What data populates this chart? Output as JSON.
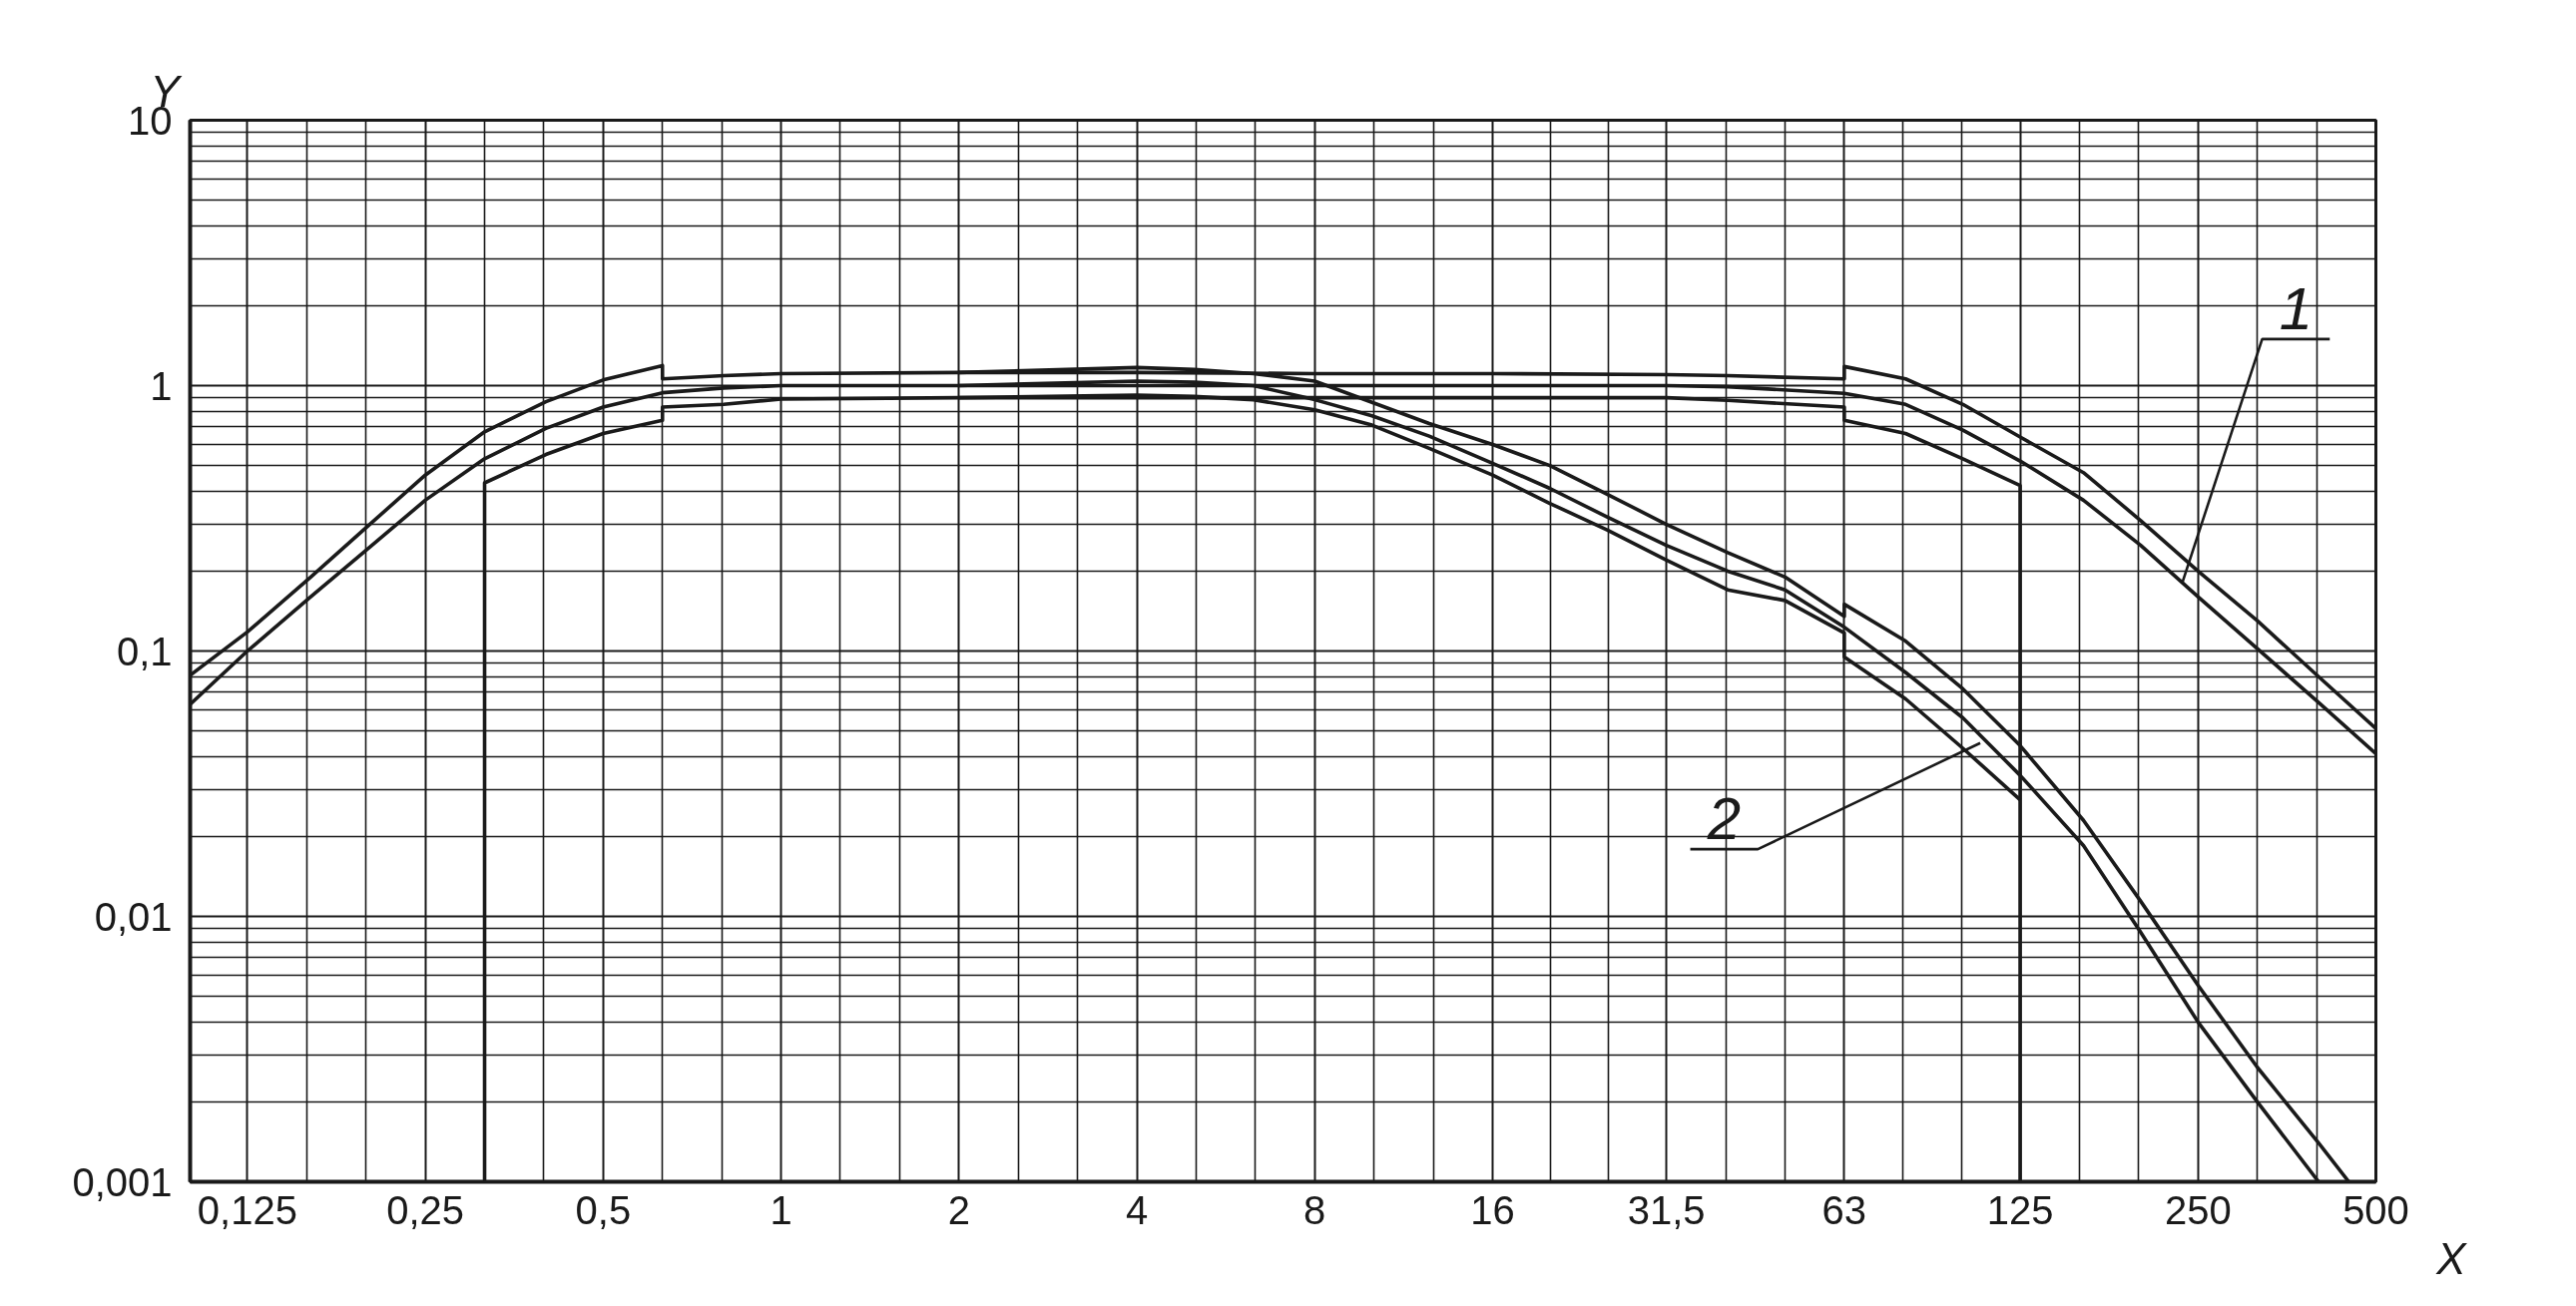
{
  "chart_data": {
    "type": "line",
    "xlabel": "X",
    "ylabel": "Y",
    "log": "xy",
    "grid": true,
    "xlim": [
      0.1,
      500
    ],
    "ylim": [
      0.001,
      10
    ],
    "xticks": [
      {
        "value": 0.125,
        "label": "0,125"
      },
      {
        "value": 0.25,
        "label": "0,25"
      },
      {
        "value": 0.5,
        "label": "0,5"
      },
      1,
      2,
      4,
      8,
      16,
      {
        "value": 31.5,
        "label": "31,5"
      },
      63,
      125,
      250,
      500
    ],
    "yticks": [
      {
        "value": 0.001,
        "label": "0,001"
      },
      {
        "value": 0.01,
        "label": "0,01"
      },
      {
        "value": 0.1,
        "label": "0,1"
      },
      1,
      10
    ],
    "series": [
      {
        "color": "#1a1a1a",
        "x": [
          0.1,
          0.125,
          0.16,
          0.2,
          0.25,
          0.315,
          0.4,
          0.5,
          0.63,
          0.8,
          1,
          2,
          4,
          8,
          16,
          31.5,
          40,
          63,
          80,
          100,
          125,
          160,
          200,
          250,
          315,
          400,
          500
        ],
        "values": [
          0.063,
          0.1,
          0.16,
          0.243,
          0.37,
          0.53,
          0.69,
          0.83,
          0.94,
          0.98,
          1.0,
          1.0,
          1.0,
          1.0,
          1.0,
          1.0,
          0.99,
          0.935,
          0.85,
          0.68,
          0.52,
          0.37,
          0.25,
          0.16,
          0.102,
          0.064,
          0.041
        ]
      },
      {
        "color": "#1a1a1a",
        "x": [
          0.1,
          0.125,
          0.16,
          0.2,
          0.25,
          0.315,
          0.4,
          0.5,
          0.63,
          0.63,
          0.8,
          1,
          2,
          4,
          8,
          16,
          31.5,
          40,
          63,
          63,
          80,
          100,
          125,
          160,
          200,
          250,
          315,
          400,
          500
        ],
        "values": [
          0.081,
          0.118,
          0.19,
          0.296,
          0.46,
          0.67,
          0.87,
          1.05,
          1.19,
          1.06,
          1.09,
          1.11,
          1.12,
          1.12,
          1.11,
          1.11,
          1.1,
          1.09,
          1.06,
          1.18,
          1.06,
          0.85,
          0.64,
          0.47,
          0.31,
          0.2,
          0.13,
          0.08,
          0.051
        ]
      },
      {
        "color": "#1a1a1a",
        "x": [
          0.315,
          0.315,
          0.4,
          0.5,
          0.63,
          0.63,
          0.8,
          1,
          2,
          4,
          8,
          16,
          31.5,
          40,
          63,
          63,
          80,
          100,
          125,
          125
        ],
        "values": [
          0.001,
          0.43,
          0.55,
          0.66,
          0.74,
          0.83,
          0.85,
          0.89,
          0.9,
          0.9,
          0.9,
          0.9,
          0.9,
          0.88,
          0.83,
          0.74,
          0.66,
          0.53,
          0.42,
          0.001
        ]
      },
      {
        "color": "#1a1a1a",
        "x": [
          2,
          4,
          5,
          6.3,
          8,
          10,
          12.5,
          16,
          20,
          25,
          31.5,
          40,
          50,
          63,
          80,
          100,
          125,
          160,
          200,
          250,
          315,
          400
        ],
        "values": [
          1.0,
          1.04,
          1.03,
          1.0,
          0.885,
          0.77,
          0.645,
          0.51,
          0.41,
          0.32,
          0.25,
          0.2,
          0.17,
          0.123,
          0.083,
          0.056,
          0.034,
          0.0185,
          0.0087,
          0.004,
          0.002,
          0.001
        ]
      },
      {
        "color": "#1a1a1a",
        "x": [
          2,
          4,
          5,
          6.3,
          8,
          10,
          12.5,
          16,
          20,
          25,
          31.5,
          40,
          50,
          63,
          63,
          80,
          100,
          125,
          160,
          200,
          250,
          315,
          400,
          450
        ],
        "values": [
          1.12,
          1.17,
          1.15,
          1.11,
          1.04,
          0.865,
          0.72,
          0.6,
          0.5,
          0.39,
          0.3,
          0.235,
          0.19,
          0.135,
          0.15,
          0.109,
          0.072,
          0.044,
          0.023,
          0.0114,
          0.0055,
          0.0027,
          0.0014,
          0.001
        ]
      },
      {
        "color": "#1a1a1a",
        "x": [
          2,
          4,
          5,
          6.3,
          8,
          10,
          12.5,
          16,
          20,
          25,
          31.5,
          40,
          50,
          63,
          63,
          80,
          100,
          125
        ],
        "values": [
          0.9,
          0.92,
          0.91,
          0.885,
          0.81,
          0.71,
          0.58,
          0.46,
          0.36,
          0.286,
          0.22,
          0.17,
          0.155,
          0.117,
          0.095,
          0.066,
          0.043,
          0.0275
        ]
      }
    ],
    "annotations": [
      {
        "text": "1",
        "x": 235,
        "y": 0.18
      },
      {
        "text": "2",
        "x": 107,
        "y": 0.045
      }
    ]
  }
}
